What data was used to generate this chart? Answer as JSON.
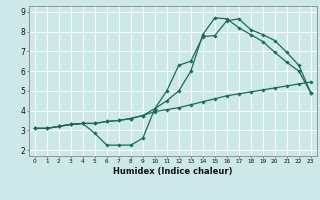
{
  "xlabel": "Humidex (Indice chaleur)",
  "bg_color": "#cce8e8",
  "grid_color": "#ffffff",
  "line_color": "#1a6b5a",
  "xlim": [
    -0.5,
    23.5
  ],
  "ylim": [
    1.7,
    9.3
  ],
  "xticks": [
    0,
    1,
    2,
    3,
    4,
    5,
    6,
    7,
    8,
    9,
    10,
    11,
    12,
    13,
    14,
    15,
    16,
    17,
    18,
    19,
    20,
    21,
    22,
    23
  ],
  "yticks": [
    2,
    3,
    4,
    5,
    6,
    7,
    8,
    9
  ],
  "line1_x": [
    0,
    1,
    2,
    3,
    4,
    5,
    6,
    7,
    8,
    9,
    10,
    11,
    12,
    13,
    14,
    15,
    16,
    17,
    18,
    19,
    20,
    21,
    22,
    23
  ],
  "line1_y": [
    3.1,
    3.1,
    3.2,
    3.3,
    3.35,
    3.35,
    3.45,
    3.5,
    3.6,
    3.75,
    3.95,
    4.05,
    4.15,
    4.3,
    4.45,
    4.6,
    4.75,
    4.85,
    4.95,
    5.05,
    5.15,
    5.25,
    5.35,
    5.45
  ],
  "line2_x": [
    0,
    1,
    2,
    3,
    4,
    5,
    6,
    7,
    8,
    9,
    10,
    11,
    12,
    13,
    14,
    15,
    16,
    17,
    18,
    19,
    20,
    21,
    22,
    23
  ],
  "line2_y": [
    3.1,
    3.1,
    3.2,
    3.3,
    3.35,
    2.85,
    2.25,
    2.25,
    2.25,
    2.6,
    4.1,
    5.0,
    6.3,
    6.5,
    7.75,
    7.8,
    8.55,
    8.65,
    8.1,
    7.85,
    7.55,
    6.95,
    6.3,
    4.9
  ],
  "line3_x": [
    0,
    1,
    2,
    3,
    4,
    5,
    6,
    7,
    8,
    9,
    10,
    11,
    12,
    13,
    14,
    15,
    16,
    17,
    18,
    19,
    20,
    21,
    22,
    23
  ],
  "line3_y": [
    3.1,
    3.1,
    3.2,
    3.3,
    3.35,
    3.35,
    3.45,
    3.5,
    3.6,
    3.75,
    4.1,
    4.5,
    5.0,
    6.0,
    7.85,
    8.7,
    8.65,
    8.2,
    7.85,
    7.5,
    6.95,
    6.45,
    6.0,
    4.9
  ]
}
